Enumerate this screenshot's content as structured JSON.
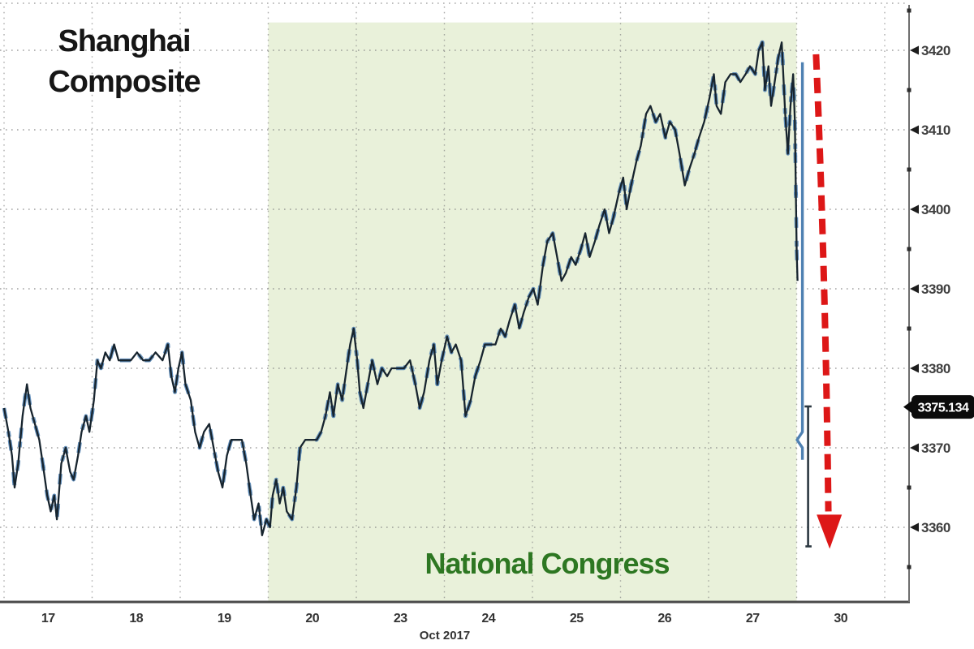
{
  "title": {
    "line1": "Shanghai",
    "line2": "Composite"
  },
  "annotation": {
    "zone_label": "National Congress",
    "zone_fill": "#e9f1da",
    "zone_label_color": "#2d7722",
    "zone_from_session": "20",
    "zone_to_session": "27"
  },
  "last_price": {
    "value": "3375.134",
    "badge_bg": "#0b0b0b",
    "badge_text": "#ffffff"
  },
  "arrow": {
    "color": "#dd1717",
    "meaning": "sharp drop after congress"
  },
  "axis_x": {
    "sessions": [
      "17",
      "18",
      "19",
      "20",
      "23",
      "24",
      "25",
      "26",
      "27",
      "30"
    ],
    "caption": "Oct 2017"
  },
  "axis_y": {
    "ticks": [
      3420,
      3410,
      3400,
      3390,
      3380,
      3370,
      3360
    ],
    "minor_ticks": [
      3425,
      3415,
      3405,
      3395,
      3385,
      3365,
      3355
    ],
    "side": "right"
  },
  "colors": {
    "series_dark": "#17242e",
    "series_blue": "#4f81b2",
    "grid": "#828282",
    "axis_line": "#4a4a4a",
    "tick_text": "#3f3f3f"
  },
  "chart_data": {
    "type": "line",
    "title": "Shanghai Composite",
    "x_axis": {
      "unit": "trading session, Oct 2017",
      "sessions": [
        "17",
        "18",
        "19",
        "20",
        "23",
        "24",
        "25",
        "26",
        "27",
        "30"
      ],
      "caption": "Oct 2017"
    },
    "y_axis": {
      "ticks": [
        3360,
        3370,
        3380,
        3390,
        3400,
        3410,
        3420
      ],
      "range": [
        3351,
        3426
      ],
      "side": "right"
    },
    "highlight_zone": {
      "label": "National Congress",
      "from_t": 3.0,
      "to_t": 9.0,
      "top_price": 3423.5,
      "bottom_price": 3350.6
    },
    "last_price": 3375.134,
    "series": [
      {
        "name": "Shanghai Composite intraday",
        "points": [
          [
            0.0,
            3375
          ],
          [
            0.05,
            3372
          ],
          [
            0.09,
            3369
          ],
          [
            0.12,
            3365
          ],
          [
            0.16,
            3368
          ],
          [
            0.21,
            3374
          ],
          [
            0.26,
            3378
          ],
          [
            0.3,
            3375
          ],
          [
            0.35,
            3373
          ],
          [
            0.4,
            3371
          ],
          [
            0.44,
            3368
          ],
          [
            0.49,
            3364
          ],
          [
            0.53,
            3362
          ],
          [
            0.57,
            3364
          ],
          [
            0.6,
            3361
          ],
          [
            0.65,
            3368
          ],
          [
            0.7,
            3370
          ],
          [
            0.75,
            3367
          ],
          [
            0.79,
            3366
          ],
          [
            0.84,
            3369
          ],
          [
            0.88,
            3372
          ],
          [
            0.93,
            3374
          ],
          [
            0.97,
            3372
          ],
          [
            1.02,
            3376
          ],
          [
            1.06,
            3381
          ],
          [
            1.1,
            3380
          ],
          [
            1.15,
            3382
          ],
          [
            1.2,
            3381
          ],
          [
            1.25,
            3383
          ],
          [
            1.3,
            3381
          ],
          [
            1.37,
            3381
          ],
          [
            1.44,
            3381
          ],
          [
            1.51,
            3382
          ],
          [
            1.58,
            3381
          ],
          [
            1.65,
            3381
          ],
          [
            1.72,
            3382
          ],
          [
            1.8,
            3381
          ],
          [
            1.86,
            3383
          ],
          [
            1.9,
            3379
          ],
          [
            1.94,
            3377
          ],
          [
            1.98,
            3380
          ],
          [
            2.02,
            3382
          ],
          [
            2.06,
            3378
          ],
          [
            2.12,
            3376
          ],
          [
            2.17,
            3372
          ],
          [
            2.22,
            3370
          ],
          [
            2.27,
            3372
          ],
          [
            2.33,
            3373
          ],
          [
            2.38,
            3370
          ],
          [
            2.43,
            3367
          ],
          [
            2.48,
            3365
          ],
          [
            2.53,
            3369
          ],
          [
            2.58,
            3371
          ],
          [
            2.64,
            3371
          ],
          [
            2.7,
            3371
          ],
          [
            2.75,
            3368
          ],
          [
            2.8,
            3364
          ],
          [
            2.84,
            3361
          ],
          [
            2.89,
            3363
          ],
          [
            2.93,
            3359
          ],
          [
            2.98,
            3361
          ],
          [
            3.02,
            3360
          ],
          [
            3.05,
            3364
          ],
          [
            3.09,
            3366
          ],
          [
            3.13,
            3363
          ],
          [
            3.17,
            3365
          ],
          [
            3.21,
            3362
          ],
          [
            3.27,
            3361
          ],
          [
            3.32,
            3365
          ],
          [
            3.36,
            3370
          ],
          [
            3.42,
            3371
          ],
          [
            3.49,
            3371
          ],
          [
            3.55,
            3371
          ],
          [
            3.6,
            3372
          ],
          [
            3.65,
            3374
          ],
          [
            3.7,
            3377
          ],
          [
            3.74,
            3374
          ],
          [
            3.79,
            3378
          ],
          [
            3.84,
            3376
          ],
          [
            3.89,
            3380
          ],
          [
            3.93,
            3383
          ],
          [
            3.97,
            3385
          ],
          [
            4.01,
            3381
          ],
          [
            4.04,
            3377
          ],
          [
            4.08,
            3375
          ],
          [
            4.13,
            3378
          ],
          [
            4.18,
            3381
          ],
          [
            4.24,
            3378
          ],
          [
            4.29,
            3380
          ],
          [
            4.35,
            3379
          ],
          [
            4.4,
            3380
          ],
          [
            4.47,
            3380
          ],
          [
            4.54,
            3380
          ],
          [
            4.61,
            3381
          ],
          [
            4.67,
            3378
          ],
          [
            4.72,
            3375
          ],
          [
            4.77,
            3377
          ],
          [
            4.83,
            3381
          ],
          [
            4.88,
            3383
          ],
          [
            4.92,
            3378
          ],
          [
            4.97,
            3381
          ],
          [
            5.03,
            3384
          ],
          [
            5.08,
            3382
          ],
          [
            5.13,
            3383
          ],
          [
            5.19,
            3381
          ],
          [
            5.24,
            3374
          ],
          [
            5.3,
            3376
          ],
          [
            5.35,
            3379
          ],
          [
            5.41,
            3381
          ],
          [
            5.46,
            3383
          ],
          [
            5.52,
            3383
          ],
          [
            5.58,
            3383
          ],
          [
            5.64,
            3385
          ],
          [
            5.69,
            3384
          ],
          [
            5.74,
            3386
          ],
          [
            5.8,
            3388
          ],
          [
            5.85,
            3385
          ],
          [
            5.9,
            3387
          ],
          [
            5.96,
            3389
          ],
          [
            6.01,
            3390
          ],
          [
            6.06,
            3388
          ],
          [
            6.12,
            3393
          ],
          [
            6.17,
            3396
          ],
          [
            6.23,
            3397
          ],
          [
            6.28,
            3394
          ],
          [
            6.33,
            3391
          ],
          [
            6.38,
            3392
          ],
          [
            6.44,
            3394
          ],
          [
            6.49,
            3393
          ],
          [
            6.55,
            3395
          ],
          [
            6.6,
            3397
          ],
          [
            6.65,
            3394
          ],
          [
            6.71,
            3396
          ],
          [
            6.76,
            3398
          ],
          [
            6.82,
            3400
          ],
          [
            6.87,
            3397
          ],
          [
            6.92,
            3399
          ],
          [
            6.98,
            3402
          ],
          [
            7.03,
            3404
          ],
          [
            7.07,
            3400
          ],
          [
            7.12,
            3403
          ],
          [
            7.18,
            3406
          ],
          [
            7.23,
            3408
          ],
          [
            7.29,
            3412
          ],
          [
            7.34,
            3413
          ],
          [
            7.4,
            3411
          ],
          [
            7.45,
            3412
          ],
          [
            7.51,
            3409
          ],
          [
            7.56,
            3411
          ],
          [
            7.62,
            3410
          ],
          [
            7.67,
            3407
          ],
          [
            7.73,
            3403
          ],
          [
            7.78,
            3405
          ],
          [
            7.84,
            3407
          ],
          [
            7.89,
            3409
          ],
          [
            7.95,
            3411
          ],
          [
            8.01,
            3414
          ],
          [
            8.06,
            3417
          ],
          [
            8.09,
            3413
          ],
          [
            8.14,
            3412
          ],
          [
            8.19,
            3416
          ],
          [
            8.25,
            3417
          ],
          [
            8.31,
            3417
          ],
          [
            8.36,
            3416
          ],
          [
            8.42,
            3417
          ],
          [
            8.47,
            3418
          ],
          [
            8.53,
            3417
          ],
          [
            8.57,
            3420
          ],
          [
            8.61,
            3421
          ],
          [
            8.64,
            3415
          ],
          [
            8.68,
            3418
          ],
          [
            8.71,
            3413
          ],
          [
            8.75,
            3416
          ],
          [
            8.79,
            3419
          ],
          [
            8.83,
            3421
          ],
          [
            8.87,
            3412
          ],
          [
            8.9,
            3407
          ],
          [
            8.93,
            3413
          ],
          [
            8.96,
            3417
          ],
          [
            8.98,
            3411
          ],
          [
            8.99,
            3403
          ],
          [
            9.0,
            3395
          ],
          [
            9.01,
            3391
          ]
        ]
      }
    ],
    "drop_segments": [
      {
        "color": "blue",
        "width": 3.4,
        "points": [
          [
            9.065,
            3418.5
          ],
          [
            9.065,
            3372
          ],
          [
            9.005,
            3371
          ],
          [
            9.065,
            3370
          ],
          [
            9.065,
            3368.5
          ]
        ]
      },
      {
        "color": "dark",
        "width": 2.6,
        "points": [
          [
            9.09,
            3375.2
          ],
          [
            9.17,
            3375.2
          ]
        ]
      },
      {
        "color": "dark",
        "width": 2.6,
        "points": [
          [
            9.13,
            3375.2
          ],
          [
            9.13,
            3357.6
          ]
        ]
      },
      {
        "color": "dark",
        "width": 2.6,
        "points": [
          [
            9.1,
            3357.6
          ],
          [
            9.17,
            3357.6
          ]
        ]
      }
    ],
    "arrow": {
      "from": [
        9.22,
        3419.5
      ],
      "to": [
        9.36,
        3362.0
      ],
      "tip": [
        9.375,
        3357.3
      ]
    }
  }
}
